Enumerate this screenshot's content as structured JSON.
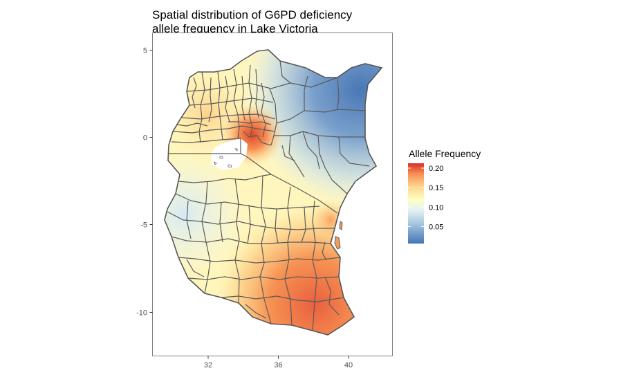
{
  "title": {
    "line1": "Spatial distribution of G6PD deficiency",
    "line2": "allele frequency in Lake Victoria"
  },
  "axes": {
    "x": {
      "ticks": [
        "32",
        "36",
        "40"
      ],
      "values": [
        32,
        36,
        40
      ],
      "range": [
        28.9,
        42.6
      ]
    },
    "y": {
      "ticks": [
        "5",
        "0",
        "-5",
        "-10"
      ],
      "values": [
        5,
        0,
        -5,
        -10
      ],
      "range": [
        -12.7,
        6.2
      ]
    },
    "grid": false
  },
  "legend": {
    "title": "Allele Frequency",
    "position": "right",
    "breaks": [
      "0.20",
      "0.15",
      "0.10",
      "0.05"
    ],
    "break_values": [
      0.2,
      0.15,
      0.1,
      0.05
    ],
    "range": [
      0.025,
      0.205
    ],
    "colors": {
      "low": "#4575b4",
      "mid_low": "#e0f3f8",
      "mid": "#ffffbf",
      "mid_high": "#fdae61",
      "high": "#d73027"
    }
  },
  "map": {
    "region_border_color": "#5a5a5a",
    "country_outline_color": "#555555"
  }
}
